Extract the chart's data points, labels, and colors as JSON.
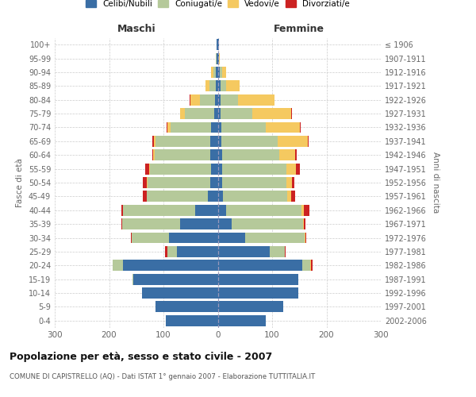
{
  "age_groups": [
    "0-4",
    "5-9",
    "10-14",
    "15-19",
    "20-24",
    "25-29",
    "30-34",
    "35-39",
    "40-44",
    "45-49",
    "50-54",
    "55-59",
    "60-64",
    "65-69",
    "70-74",
    "75-79",
    "80-84",
    "85-89",
    "90-94",
    "95-99",
    "100+"
  ],
  "birth_years": [
    "2002-2006",
    "1997-2001",
    "1992-1996",
    "1987-1991",
    "1982-1986",
    "1977-1981",
    "1972-1976",
    "1967-1971",
    "1962-1966",
    "1957-1961",
    "1952-1956",
    "1947-1951",
    "1942-1946",
    "1937-1941",
    "1932-1936",
    "1927-1931",
    "1922-1926",
    "1917-1921",
    "1912-1916",
    "1907-1911",
    "≤ 1906"
  ],
  "colors": {
    "celibi": "#3a6ea5",
    "coniugati": "#b5c99a",
    "vedovi": "#f5c960",
    "divorziati": "#cc2222"
  },
  "males": {
    "celibi": [
      95,
      115,
      140,
      155,
      175,
      75,
      90,
      70,
      42,
      18,
      14,
      13,
      14,
      14,
      12,
      7,
      5,
      4,
      3,
      2,
      2
    ],
    "coniugati": [
      0,
      0,
      0,
      2,
      18,
      18,
      68,
      106,
      132,
      112,
      115,
      112,
      102,
      100,
      75,
      53,
      28,
      11,
      5,
      1,
      0
    ],
    "vedovi": [
      0,
      0,
      0,
      0,
      0,
      0,
      0,
      0,
      1,
      1,
      2,
      2,
      3,
      4,
      5,
      9,
      18,
      8,
      4,
      1,
      0
    ],
    "divorziati": [
      0,
      0,
      0,
      0,
      1,
      4,
      2,
      2,
      3,
      7,
      7,
      7,
      2,
      3,
      2,
      1,
      1,
      0,
      0,
      0,
      0
    ]
  },
  "females": {
    "nubili": [
      88,
      120,
      148,
      148,
      155,
      95,
      50,
      25,
      16,
      10,
      8,
      8,
      8,
      6,
      6,
      5,
      5,
      5,
      3,
      2,
      2
    ],
    "coniugate": [
      0,
      0,
      0,
      0,
      15,
      28,
      110,
      132,
      138,
      118,
      118,
      118,
      105,
      104,
      82,
      58,
      32,
      10,
      5,
      0,
      0
    ],
    "vedove": [
      0,
      0,
      0,
      0,
      2,
      1,
      1,
      2,
      5,
      7,
      10,
      18,
      30,
      55,
      63,
      72,
      68,
      25,
      8,
      2,
      0
    ],
    "divorziate": [
      0,
      0,
      0,
      0,
      2,
      1,
      2,
      3,
      10,
      7,
      5,
      7,
      2,
      2,
      2,
      2,
      0,
      0,
      0,
      0,
      0
    ]
  },
  "xlim": 300,
  "title": "Popolazione per età, sesso e stato civile - 2007",
  "subtitle": "COMUNE DI CAPISTRELLO (AQ) - Dati ISTAT 1° gennaio 2007 - Elaborazione TUTTITALIA.IT",
  "ylabel_left": "Fasce di età",
  "ylabel_right": "Anni di nascita",
  "xlabel_maschi": "Maschi",
  "xlabel_femmine": "Femmine",
  "legend_labels": [
    "Celibi/Nubili",
    "Coniugati/e",
    "Vedovi/e",
    "Divorziati/e"
  ],
  "legend_colors": [
    "#3a6ea5",
    "#b5c99a",
    "#f5c960",
    "#cc2222"
  ],
  "background_color": "#ffffff",
  "grid_color": "#cccccc"
}
